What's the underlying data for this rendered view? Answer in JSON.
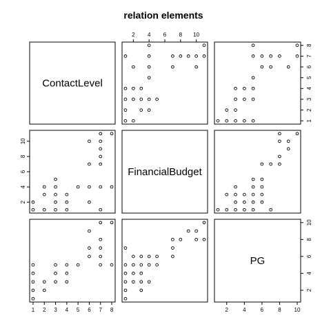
{
  "chart_data": {
    "type": "scatter",
    "title": "relation  elements",
    "variables": [
      "ContactLevel",
      "FinancialBudget",
      "PG"
    ],
    "ranges": {
      "ContactLevel": [
        1,
        8
      ],
      "FinancialBudget": [
        1,
        11
      ],
      "PG": [
        1,
        10
      ]
    },
    "ticks": {
      "ContactLevel": [
        1,
        2,
        3,
        4,
        5,
        6,
        7,
        8
      ],
      "FinancialBudget": [
        2,
        4,
        6,
        8,
        10
      ],
      "PG": [
        2,
        4,
        6,
        8,
        10
      ]
    },
    "pairs": {
      "contact_budget": [
        [
          1,
          1
        ],
        [
          1,
          2
        ],
        [
          2,
          1
        ],
        [
          2,
          3
        ],
        [
          2,
          4
        ],
        [
          3,
          1
        ],
        [
          3,
          2
        ],
        [
          3,
          3
        ],
        [
          3,
          4
        ],
        [
          3,
          5
        ],
        [
          4,
          1
        ],
        [
          4,
          2
        ],
        [
          4,
          3
        ],
        [
          5,
          4
        ],
        [
          6,
          2
        ],
        [
          6,
          4
        ],
        [
          6,
          7
        ],
        [
          6,
          10
        ],
        [
          7,
          1
        ],
        [
          7,
          4
        ],
        [
          7,
          7
        ],
        [
          7,
          8
        ],
        [
          7,
          9
        ],
        [
          7,
          10
        ],
        [
          7,
          11
        ],
        [
          8,
          4
        ],
        [
          8,
          11
        ]
      ],
      "contact_pg": [
        [
          1,
          1
        ],
        [
          1,
          2
        ],
        [
          1,
          3
        ],
        [
          1,
          4
        ],
        [
          1,
          5
        ],
        [
          2,
          2
        ],
        [
          2,
          3
        ],
        [
          3,
          3
        ],
        [
          3,
          4
        ],
        [
          3,
          5
        ],
        [
          4,
          3
        ],
        [
          4,
          4
        ],
        [
          4,
          5
        ],
        [
          5,
          5
        ],
        [
          6,
          6
        ],
        [
          6,
          7
        ],
        [
          6,
          9
        ],
        [
          7,
          5
        ],
        [
          7,
          6
        ],
        [
          7,
          7
        ],
        [
          7,
          8
        ],
        [
          7,
          10
        ],
        [
          8,
          5
        ],
        [
          8,
          10
        ]
      ],
      "budget_pg": [
        [
          1,
          1
        ],
        [
          1,
          2
        ],
        [
          1,
          3
        ],
        [
          1,
          4
        ],
        [
          1,
          5
        ],
        [
          1,
          7
        ],
        [
          2,
          3
        ],
        [
          2,
          4
        ],
        [
          2,
          5
        ],
        [
          2,
          6
        ],
        [
          3,
          2
        ],
        [
          3,
          3
        ],
        [
          3,
          4
        ],
        [
          3,
          5
        ],
        [
          3,
          6
        ],
        [
          4,
          3
        ],
        [
          4,
          5
        ],
        [
          4,
          6
        ],
        [
          5,
          5
        ],
        [
          5,
          6
        ],
        [
          7,
          6
        ],
        [
          7,
          7
        ],
        [
          7,
          8
        ],
        [
          8,
          8
        ],
        [
          9,
          9
        ],
        [
          10,
          8
        ],
        [
          10,
          9
        ],
        [
          11,
          8
        ],
        [
          11,
          10
        ]
      ]
    }
  }
}
